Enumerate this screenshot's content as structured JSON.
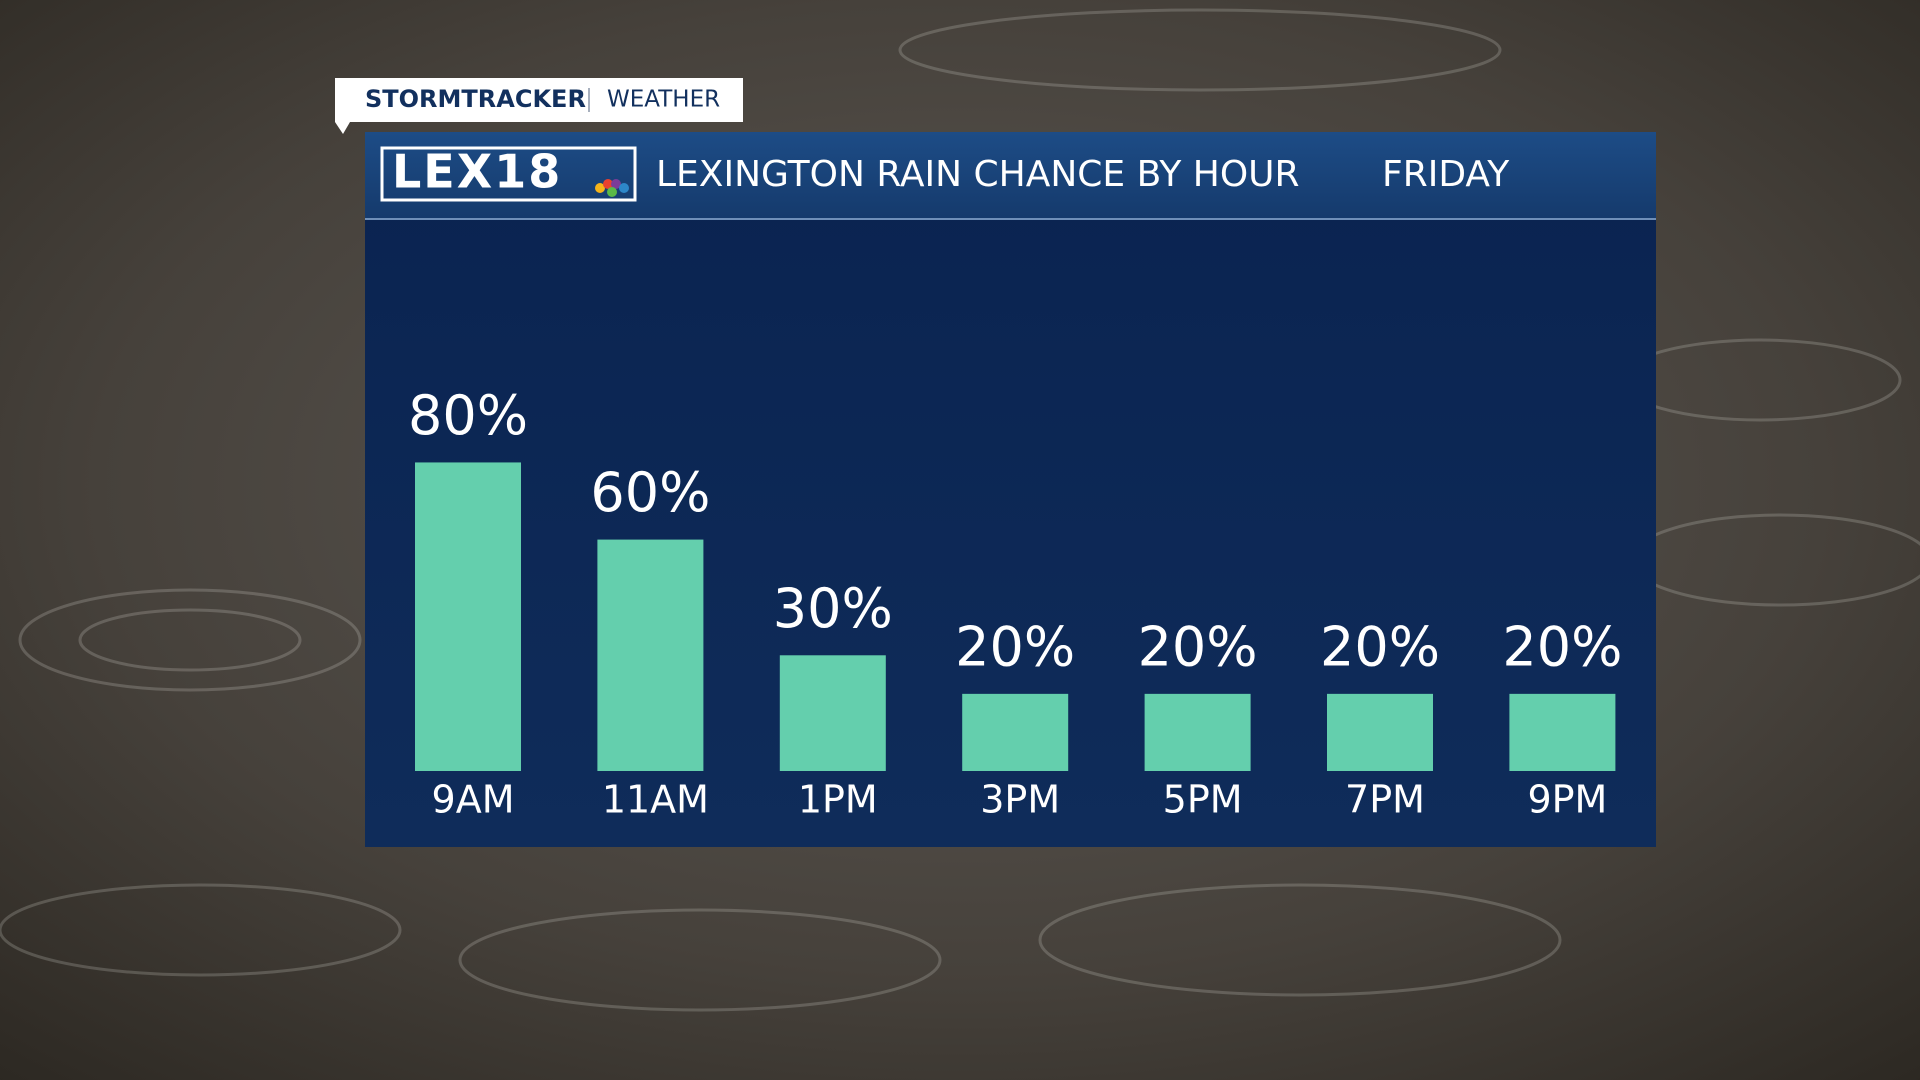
{
  "brand": {
    "show": "STORMTRACKER",
    "section": "WEATHER",
    "logo": "LEX18"
  },
  "chart_data": {
    "type": "bar",
    "title": "LEXINGTON RAIN CHANCE BY HOUR",
    "subtitle": "FRIDAY",
    "categories": [
      "9AM",
      "11AM",
      "1PM",
      "3PM",
      "5PM",
      "7PM",
      "9PM"
    ],
    "values": [
      80,
      60,
      30,
      20,
      20,
      20,
      20
    ],
    "value_labels": [
      "80%",
      "60%",
      "30%",
      "20%",
      "20%",
      "20%",
      "20%"
    ],
    "color": "#64cfad"
  }
}
